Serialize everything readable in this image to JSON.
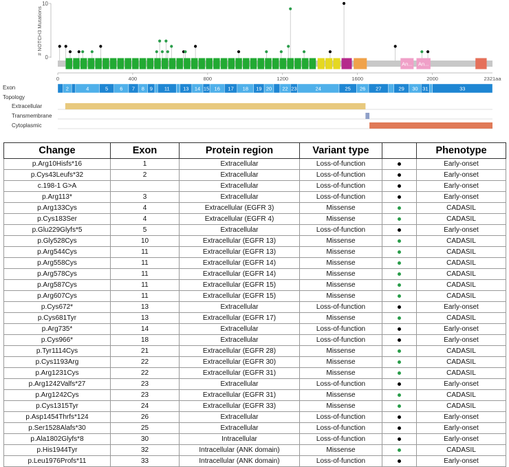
{
  "lollipop": {
    "y_axis_label": "# NOTCH3 Mutations",
    "y_ticks": [
      "10",
      "0"
    ],
    "y_max": 10,
    "x_ticks": [
      "0",
      "400",
      "800",
      "1200",
      "1600",
      "2000"
    ],
    "x_tick_values": [
      0,
      400,
      800,
      1200,
      1600,
      2000
    ],
    "x_end_label": "2321aa",
    "protein_length": 2321,
    "colors": {
      "backbone": "#c8c8c8",
      "egf": "#22aa33",
      "lnr": "#e5d820",
      "hd": "#b52a8c",
      "orange": "#f0a24a",
      "ank": "#f0a0c8",
      "end": "#e5705a",
      "missense": "#2a9d4a",
      "truncating": "#000000"
    },
    "domains": [
      {
        "type": "egf",
        "start": 40,
        "end": 1380,
        "count": 34
      },
      {
        "type": "lnr",
        "start": 1385,
        "end": 1510,
        "count": 3
      },
      {
        "type": "hd",
        "start": 1515,
        "end": 1570
      },
      {
        "type": "orange",
        "start": 1580,
        "end": 1650
      },
      {
        "type": "ank",
        "start": 1830,
        "end": 1900,
        "label": "An..."
      },
      {
        "type": "ank",
        "start": 1915,
        "end": 1990,
        "label": "An..."
      },
      {
        "type": "end",
        "start": 2230,
        "end": 2290
      }
    ],
    "mutations": [
      {
        "pos": 10,
        "count": 2,
        "type": "truncating"
      },
      {
        "pos": 43,
        "count": 2,
        "type": "truncating"
      },
      {
        "pos": 66,
        "count": 1,
        "type": "truncating"
      },
      {
        "pos": 113,
        "count": 1,
        "type": "truncating"
      },
      {
        "pos": 133,
        "count": 1,
        "type": "missense"
      },
      {
        "pos": 183,
        "count": 1,
        "type": "missense"
      },
      {
        "pos": 229,
        "count": 2,
        "type": "truncating"
      },
      {
        "pos": 528,
        "count": 1,
        "type": "missense"
      },
      {
        "pos": 544,
        "count": 3,
        "type": "missense"
      },
      {
        "pos": 558,
        "count": 1,
        "type": "missense"
      },
      {
        "pos": 578,
        "count": 3,
        "type": "missense"
      },
      {
        "pos": 587,
        "count": 1,
        "type": "missense"
      },
      {
        "pos": 607,
        "count": 2,
        "type": "missense"
      },
      {
        "pos": 672,
        "count": 1,
        "type": "truncating"
      },
      {
        "pos": 681,
        "count": 1,
        "type": "missense"
      },
      {
        "pos": 735,
        "count": 2,
        "type": "truncating"
      },
      {
        "pos": 966,
        "count": 1,
        "type": "truncating"
      },
      {
        "pos": 1114,
        "count": 1,
        "type": "missense"
      },
      {
        "pos": 1193,
        "count": 1,
        "type": "missense"
      },
      {
        "pos": 1231,
        "count": 2,
        "type": "missense"
      },
      {
        "pos": 1242,
        "count": 9,
        "type": "missense"
      },
      {
        "pos": 1315,
        "count": 1,
        "type": "missense"
      },
      {
        "pos": 1454,
        "count": 1,
        "type": "truncating"
      },
      {
        "pos": 1528,
        "count": 10,
        "type": "truncating"
      },
      {
        "pos": 1802,
        "count": 2,
        "type": "truncating"
      },
      {
        "pos": 1944,
        "count": 1,
        "type": "missense"
      },
      {
        "pos": 1976,
        "count": 1,
        "type": "truncating"
      }
    ]
  },
  "exon_track": {
    "label": "Exon",
    "colors": [
      "#1e86d3",
      "#4fb0ea"
    ],
    "exons": [
      {
        "label": "1",
        "start": 0,
        "end": 28
      },
      {
        "label": "2",
        "start": 28,
        "end": 74
      },
      {
        "label": "3",
        "start": 74,
        "end": 95
      },
      {
        "label": "4",
        "start": 95,
        "end": 222
      },
      {
        "label": "5",
        "start": 222,
        "end": 300
      },
      {
        "label": "6",
        "start": 300,
        "end": 378
      },
      {
        "label": "7",
        "start": 378,
        "end": 430
      },
      {
        "label": "8",
        "start": 430,
        "end": 480
      },
      {
        "label": "9",
        "start": 480,
        "end": 518
      },
      {
        "label": "10",
        "start": 518,
        "end": 533
      },
      {
        "label": "11",
        "start": 533,
        "end": 633
      },
      {
        "label": "12",
        "start": 633,
        "end": 652
      },
      {
        "label": "13",
        "start": 652,
        "end": 716
      },
      {
        "label": "14",
        "start": 716,
        "end": 775
      },
      {
        "label": "15",
        "start": 775,
        "end": 812
      },
      {
        "label": "16",
        "start": 812,
        "end": 890
      },
      {
        "label": "17",
        "start": 890,
        "end": 958
      },
      {
        "label": "18",
        "start": 958,
        "end": 1046
      },
      {
        "label": "19",
        "start": 1046,
        "end": 1102
      },
      {
        "label": "20",
        "start": 1102,
        "end": 1153
      },
      {
        "label": "21",
        "start": 1153,
        "end": 1186
      },
      {
        "label": "22",
        "start": 1186,
        "end": 1242
      },
      {
        "label": "23",
        "start": 1242,
        "end": 1280
      },
      {
        "label": "24",
        "start": 1280,
        "end": 1502
      },
      {
        "label": "25",
        "start": 1502,
        "end": 1595
      },
      {
        "label": "26",
        "start": 1595,
        "end": 1660
      },
      {
        "label": "27",
        "start": 1660,
        "end": 1765
      },
      {
        "label": "28",
        "start": 1765,
        "end": 1795
      },
      {
        "label": "29",
        "start": 1795,
        "end": 1875
      },
      {
        "label": "30",
        "start": 1875,
        "end": 1940
      },
      {
        "label": "31",
        "start": 1940,
        "end": 1985
      },
      {
        "label": "32",
        "start": 1985,
        "end": 2000
      },
      {
        "label": "33",
        "start": 2000,
        "end": 2321
      }
    ]
  },
  "topology": {
    "label": "Topology",
    "rows": [
      {
        "label": "Extracellular",
        "start": 40,
        "end": 1643,
        "color": "#e8c97e"
      },
      {
        "label": "Transmembrane",
        "start": 1643,
        "end": 1664,
        "color": "#8fa0c8"
      },
      {
        "label": "Cytoplasmic",
        "start": 1664,
        "end": 2321,
        "color": "#e07a58"
      }
    ]
  },
  "table": {
    "headers": [
      "Change",
      "Exon",
      "Protein region",
      "Variant type",
      "",
      "Phenotype"
    ],
    "dot_colors": {
      "Missense": "#2a9d4a",
      "Loss-of-function": "#000000"
    },
    "rows": [
      [
        "p.Arg10Hisfs*16",
        "1",
        "Extracellular",
        "Loss-of-function",
        "",
        "Early-onset"
      ],
      [
        "p.Cys43Leufs*32",
        "2",
        "Extracellular",
        "Loss-of-function",
        "",
        "Early-onset"
      ],
      [
        "c.198-1 G>A",
        "",
        "Extracellular",
        "Loss-of-function",
        "",
        "Early-onset"
      ],
      [
        "p.Arg113*",
        "3",
        "Extracellular",
        "Loss-of-function",
        "",
        "Early-onset"
      ],
      [
        "p.Arg133Cys",
        "4",
        "Extracellular (EGFR 3)",
        "Missense",
        "",
        "CADASIL"
      ],
      [
        "p.Cys183Ser",
        "4",
        "Extracellular (EGFR 4)",
        "Missense",
        "",
        "CADASIL"
      ],
      [
        "p.Glu229Glyfs*5",
        "5",
        "Extracellular",
        "Loss-of-function",
        "",
        "Early-onset"
      ],
      [
        "p.Gly528Cys",
        "10",
        "Extracellular (EGFR 13)",
        "Missense",
        "",
        "CADASIL"
      ],
      [
        "p.Arg544Cys",
        "11",
        "Extracellular (EGFR 13)",
        "Missense",
        "",
        "CADASIL"
      ],
      [
        "p.Arg558Cys",
        "11",
        "Extracellular (EGFR 14)",
        "Missense",
        "",
        "CADASIL"
      ],
      [
        "p.Arg578Cys",
        "11",
        "Extracellular (EGFR 14)",
        "Missense",
        "",
        "CADASIL"
      ],
      [
        "p.Arg587Cys",
        "11",
        "Extracellular (EGFR 15)",
        "Missense",
        "",
        "CADASIL"
      ],
      [
        "p.Arg607Cys",
        "11",
        "Extracellular (EGFR 15)",
        "Missense",
        "",
        "CADASIL"
      ],
      [
        "p.Cys672*",
        "13",
        "Extracellular",
        "Loss-of-function",
        "",
        "Early-onset"
      ],
      [
        "p.Cys681Tyr",
        "13",
        "Extracellular (EGFR 17)",
        "Missense",
        "",
        "CADASIL"
      ],
      [
        "p.Arg735*",
        "14",
        "Extracellular",
        "Loss-of-function",
        "",
        "Early-onset"
      ],
      [
        "p.Cys966*",
        "18",
        "Extracellular",
        "Loss-of-function",
        "",
        "Early-onset"
      ],
      [
        "p.Tyr1114Cys",
        "21",
        "Extracellular (EGFR 28)",
        "Missense",
        "",
        "CADASIL"
      ],
      [
        "p.Cys1193Arg",
        "22",
        "Extracellular (EGFR 30)",
        "Missense",
        "",
        "CADASIL"
      ],
      [
        "p.Arg1231Cys",
        "22",
        "Extracellular (EGFR 31)",
        "Missense",
        "",
        "CADASIL"
      ],
      [
        "p.Arg1242Valfs*27",
        "23",
        "Extracellular",
        "Loss-of-function",
        "",
        "Early-onset"
      ],
      [
        "p.Arg1242Cys",
        "23",
        "Extracellular (EGFR 31)",
        "Missense",
        "",
        "CADASIL"
      ],
      [
        "p.Cys1315Tyr",
        "24",
        "Extracellular (EGFR 33)",
        "Missense",
        "",
        "CADASIL"
      ],
      [
        "p.Asp1454Thrfs*124",
        "26",
        "Extracellular",
        "Loss-of-function",
        "",
        "Early-onset"
      ],
      [
        "p.Ser1528Alafs*30",
        "25",
        "Extracellular",
        "Loss-of-function",
        "",
        "Early-onset"
      ],
      [
        "p.Ala1802Glyfs*8",
        "30",
        "Intracellular",
        "Loss-of-function",
        "",
        "Early-onset"
      ],
      [
        "p.His1944Tyr",
        "32",
        "Intracellular (ANK domain)",
        "Missense",
        "",
        "CADASIL"
      ],
      [
        "p.Leu1976Profs*11",
        "33",
        "Intracellular (ANK domain)",
        "Loss-of-function",
        "",
        "Early-onset"
      ]
    ]
  }
}
